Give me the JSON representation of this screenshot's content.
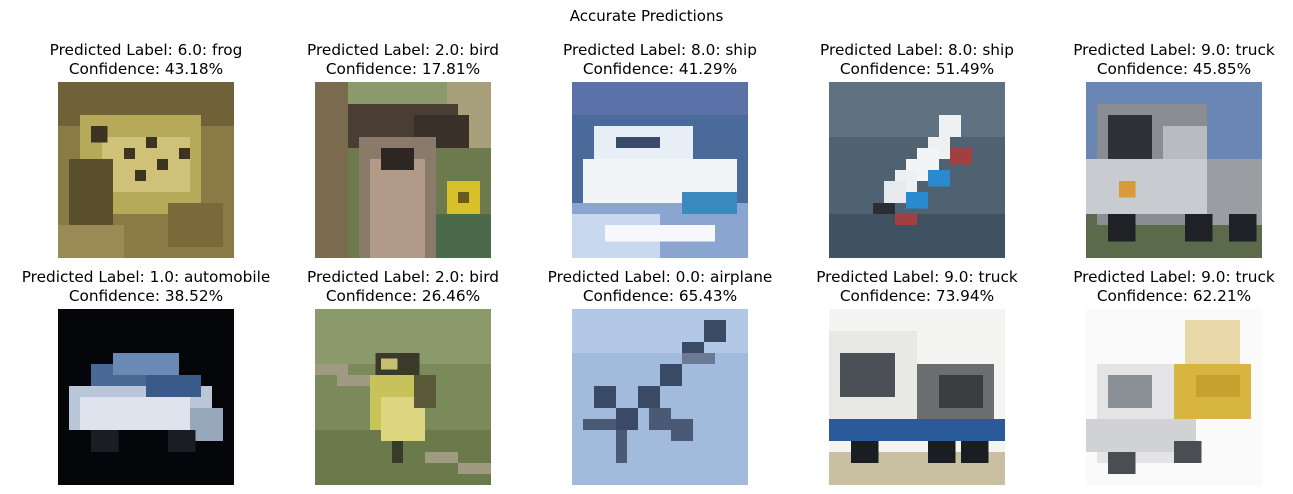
{
  "figure": {
    "title": "Accurate Predictions"
  },
  "predictions": [
    {
      "label_line": "Predicted Label: 6.0: frog",
      "confidence_line": "Confidence: 43.18%",
      "image": "frog-photo"
    },
    {
      "label_line": "Predicted Label: 2.0: bird",
      "confidence_line": "Confidence: 17.81%",
      "image": "bird-head-photo"
    },
    {
      "label_line": "Predicted Label: 8.0: ship",
      "confidence_line": "Confidence: 41.29%",
      "image": "boat-photo"
    },
    {
      "label_line": "Predicted Label: 8.0: ship",
      "confidence_line": "Confidence: 51.49%",
      "image": "ship-photo"
    },
    {
      "label_line": "Predicted Label: 9.0: truck",
      "confidence_line": "Confidence: 45.85%",
      "image": "truck-photo"
    },
    {
      "label_line": "Predicted Label: 1.0: automobile",
      "confidence_line": "Confidence: 38.52%",
      "image": "car-photo"
    },
    {
      "label_line": "Predicted Label: 2.0: bird",
      "confidence_line": "Confidence: 26.46%",
      "image": "perched-bird-photo"
    },
    {
      "label_line": "Predicted Label: 0.0: airplane",
      "confidence_line": "Confidence: 65.43%",
      "image": "airplane-photo"
    },
    {
      "label_line": "Predicted Label: 9.0: truck",
      "confidence_line": "Confidence: 73.94%",
      "image": "tow-truck-photo"
    },
    {
      "label_line": "Predicted Label: 9.0: truck",
      "confidence_line": "Confidence: 62.21%",
      "image": "dump-truck-photo"
    }
  ]
}
